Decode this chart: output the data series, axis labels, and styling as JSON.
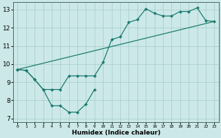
{
  "xlabel": "Humidex (Indice chaleur)",
  "bg_color": "#cce8e8",
  "grid_color": "#aacfcf",
  "line_color": "#1a7a6e",
  "xlim": [
    -0.5,
    23.5
  ],
  "ylim": [
    6.8,
    13.4
  ],
  "xticks": [
    0,
    1,
    2,
    3,
    4,
    5,
    6,
    7,
    8,
    9,
    10,
    11,
    12,
    13,
    14,
    15,
    16,
    17,
    18,
    19,
    20,
    21,
    22,
    23
  ],
  "yticks": [
    7,
    8,
    9,
    10,
    11,
    12,
    13
  ],
  "line1_x": [
    0,
    1,
    2,
    3,
    4,
    5,
    6,
    7,
    8,
    9
  ],
  "line1_y": [
    9.7,
    9.65,
    9.15,
    8.6,
    7.7,
    7.7,
    7.35,
    7.35,
    7.8,
    8.6
  ],
  "line2_x": [
    0,
    1,
    2,
    3,
    4,
    5,
    6,
    7,
    8,
    9,
    10,
    11,
    12,
    13,
    14,
    15,
    16,
    17,
    18,
    19,
    20,
    21,
    22,
    23
  ],
  "line2_y": [
    9.7,
    9.65,
    9.15,
    8.6,
    8.6,
    8.6,
    9.35,
    9.35,
    9.35,
    9.35,
    10.1,
    11.35,
    11.5,
    12.3,
    12.45,
    13.05,
    12.8,
    12.65,
    12.65,
    12.9,
    12.9,
    13.1,
    12.4,
    12.35
  ],
  "line3_x": [
    0,
    23
  ],
  "line3_y": [
    9.7,
    12.35
  ]
}
